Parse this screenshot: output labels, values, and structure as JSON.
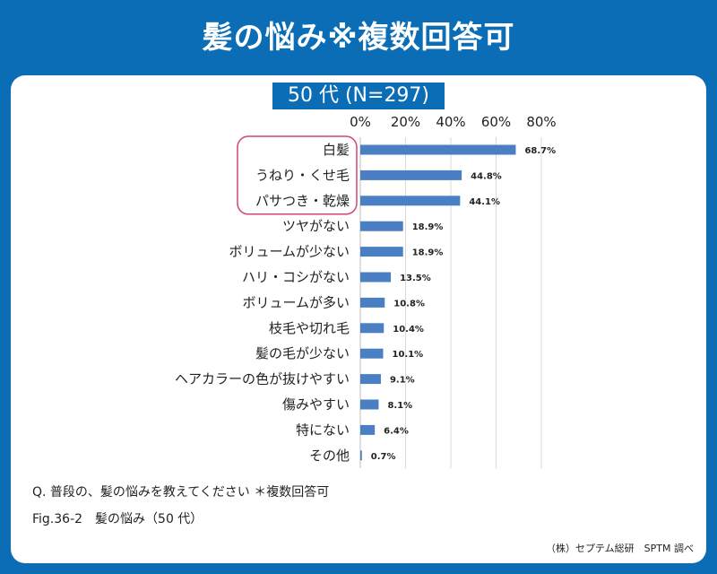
{
  "title": "髪の悩み※複数回答可",
  "subtitle": "50 代 (N=297)",
  "chart_data": {
    "type": "bar",
    "orientation": "horizontal",
    "categories": [
      "白髪",
      "うねり・くせ毛",
      "パサつき・乾燥",
      "ツヤがない",
      "ボリュームが少ない",
      "ハリ・コシがない",
      "ボリュームが多い",
      "枝毛や切れ毛",
      "髪の毛が少ない",
      "ヘアカラーの色が抜けやすい",
      "傷みやすい",
      "特にない",
      "その他"
    ],
    "values": [
      68.7,
      44.8,
      44.1,
      18.9,
      18.9,
      13.5,
      10.8,
      10.4,
      10.1,
      9.1,
      8.1,
      6.4,
      0.7
    ],
    "value_labels": [
      "68.7%",
      "44.8%",
      "44.1%",
      "18.9%",
      "18.9%",
      "13.5%",
      "10.8%",
      "10.4%",
      "10.1%",
      "9.1%",
      "8.1%",
      "6.4%",
      "0.7%"
    ],
    "x_ticks": [
      "0%",
      "20%",
      "40%",
      "60%",
      "80%"
    ],
    "xlim": [
      0,
      80
    ],
    "grid": true,
    "highlighted_categories": [
      0,
      1,
      2
    ],
    "bar_color": "#4a7fc4",
    "highlight_color": "#d6456b"
  },
  "question": "Q. 普段の、髪の悩みを教えてください ＊複数回答可",
  "figure_caption": "Fig.36-2　髪の悩み（50 代）",
  "credit": "（株）セプテム総研　SPTM 調べ"
}
